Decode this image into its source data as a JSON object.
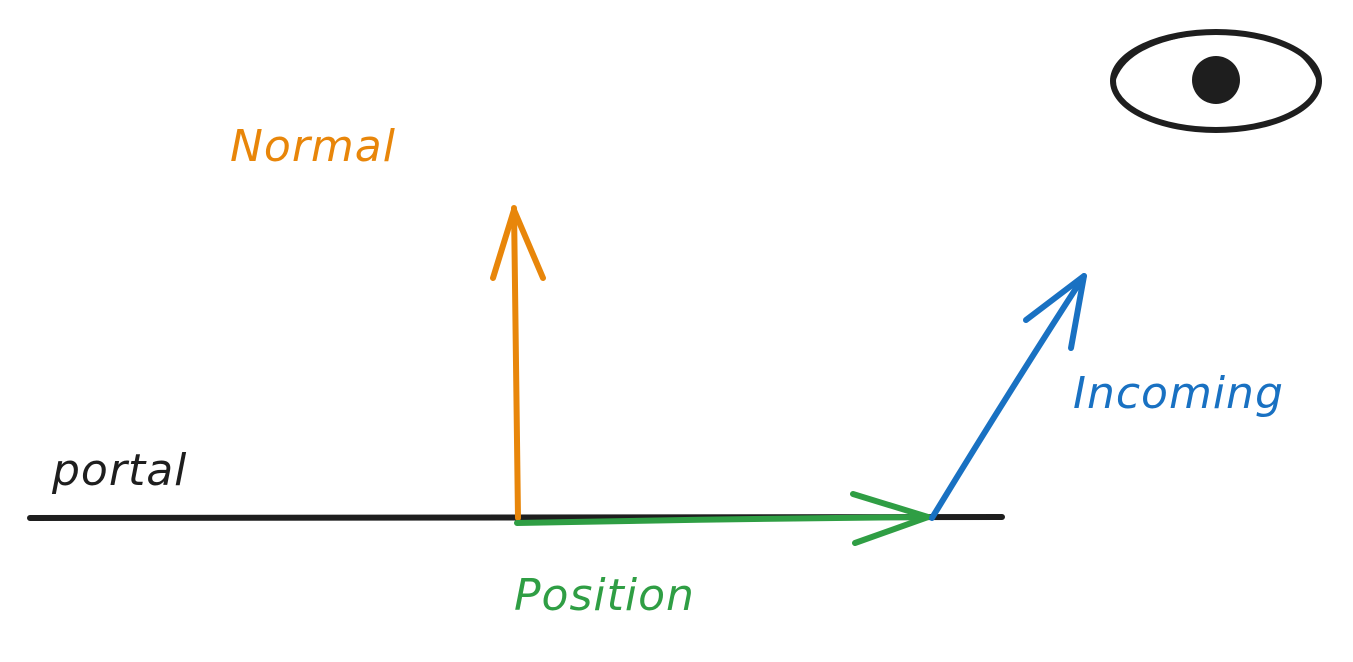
{
  "labels": {
    "normal": "Normal",
    "portal": "portal",
    "incoming": "Incoming",
    "position": "Position"
  },
  "colors": {
    "normal": "#e8860a",
    "position": "#2f9e44",
    "incoming": "#1971c2",
    "portal": "#1e1e1e",
    "eye": "#1e1e1e"
  },
  "icons": {
    "eye": "eye-icon"
  }
}
